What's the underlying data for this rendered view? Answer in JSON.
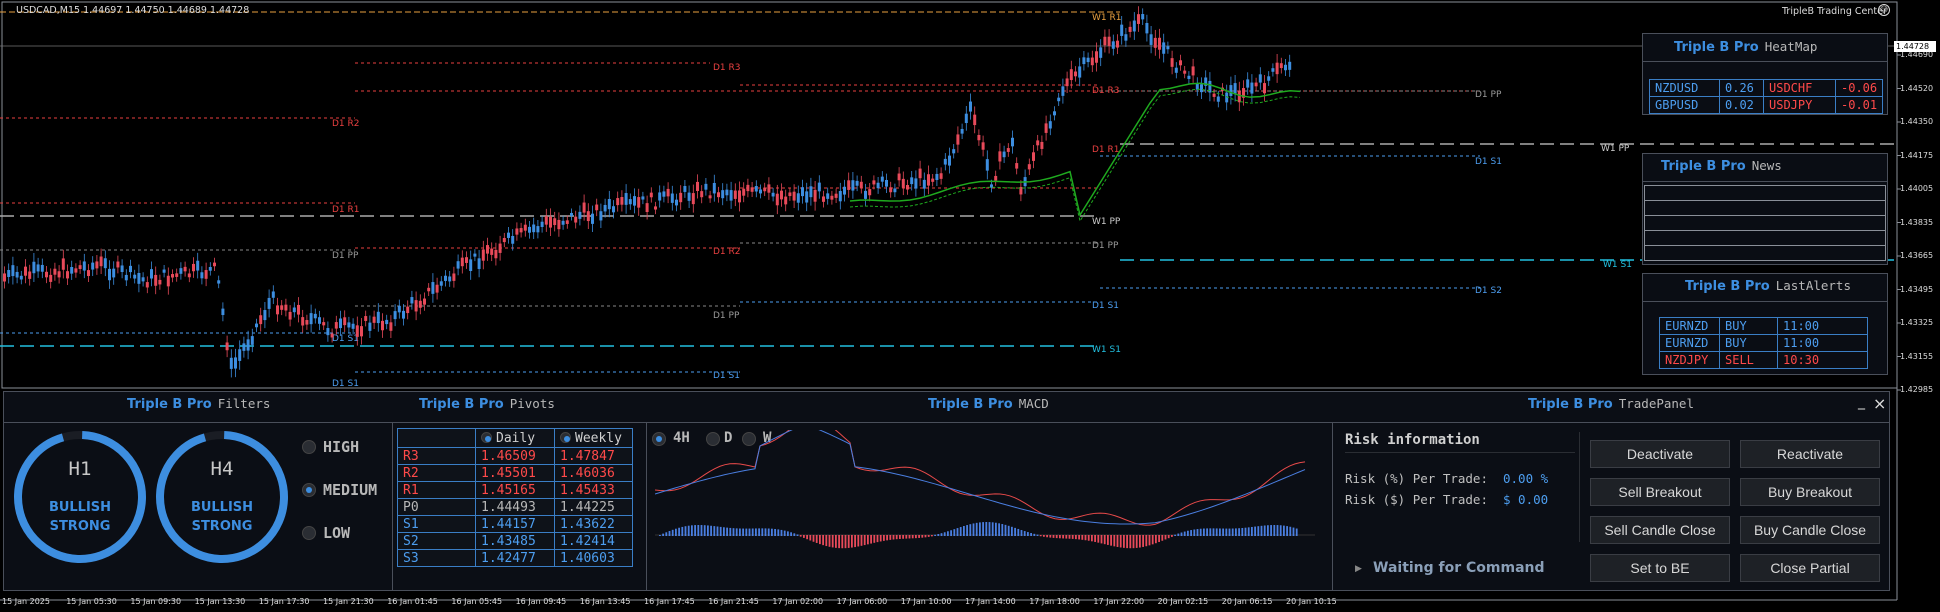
{
  "header": {
    "symbol_info": "USDCAD,M15  1.44697 1.44750 1.44689 1.44728",
    "brand": "TripleB Trading Center",
    "smile_icon": "smile-icon"
  },
  "price_axis": {
    "current": "1.44728",
    "ticks": [
      "1.44690",
      "1.44520",
      "1.44350",
      "1.44175",
      "1.44005",
      "1.43835",
      "1.43665",
      "1.43495",
      "1.43325",
      "1.43155",
      "1.42985"
    ]
  },
  "time_axis": [
    "15 Jan 2025",
    "15 Jan 05:30",
    "15 Jan 09:30",
    "15 Jan 13:30",
    "15 Jan 17:30",
    "15 Jan 21:30",
    "16 Jan 01:45",
    "16 Jan 05:45",
    "16 Jan 09:45",
    "16 Jan 13:45",
    "16 Jan 17:45",
    "16 Jan 21:45",
    "17 Jan 02:00",
    "17 Jan 06:00",
    "17 Jan 10:00",
    "17 Jan 14:00",
    "17 Jan 18:00",
    "17 Jan 22:00",
    "20 Jan 02:15",
    "20 Jan 06:15",
    "20 Jan 10:15"
  ],
  "pivot_labels": [
    "W1 R1",
    "D1 R3",
    "D1 R2",
    "D1 R3",
    "D1 R1",
    "D1 R2",
    "D1 R1",
    "D1 PP",
    "D1 PP",
    "W1 PP",
    "D1 PP",
    "D1 PP",
    "D1 S1",
    "D1 S1",
    "D1 S1",
    "W1 S1",
    "W1 S1",
    "D1 S2",
    "D1 S1",
    "D1 S1",
    "W1 PP"
  ],
  "heatmap": {
    "title_brand": "Triple B Pro",
    "title": "HeatMap",
    "rows": [
      {
        "pair1": "NZDUSD",
        "val1": "0.26",
        "pair2": "USDCHF",
        "val2": "-0.06"
      },
      {
        "pair1": "GBPUSD",
        "val1": "0.02",
        "pair2": "USDJPY",
        "val2": "-0.01"
      }
    ],
    "pos_color": "#4d9ef0",
    "neg_color": "#ff4a4a"
  },
  "news": {
    "title_brand": "Triple B Pro",
    "title": "News"
  },
  "alerts": {
    "title_brand": "Triple B Pro",
    "title": "LastAlerts",
    "rows": [
      {
        "pair": "EURNZD",
        "side": "BUY",
        "time": "11:00"
      },
      {
        "pair": "EURNZD",
        "side": "BUY",
        "time": "11:00"
      },
      {
        "pair": "NZDJPY",
        "side": "SELL",
        "time": "10:30"
      }
    ]
  },
  "filters": {
    "title_brand": "Triple B Pro",
    "title": "Filters",
    "gauges": [
      {
        "tf": "H1",
        "line1": "BULLISH",
        "line2": "STRONG"
      },
      {
        "tf": "H4",
        "line1": "BULLISH",
        "line2": "STRONG"
      }
    ],
    "levels": [
      {
        "label": "HIGH",
        "on": false
      },
      {
        "label": "MEDIUM",
        "on": true
      },
      {
        "label": "LOW",
        "on": false
      }
    ]
  },
  "pivots": {
    "title_brand": "Triple B Pro",
    "title": "Pivots",
    "col_daily": "Daily",
    "col_weekly": "Weekly",
    "rows": [
      {
        "name": "R3",
        "daily": "1.46509",
        "weekly": "1.47847"
      },
      {
        "name": "R2",
        "daily": "1.45501",
        "weekly": "1.46036"
      },
      {
        "name": "R1",
        "daily": "1.45165",
        "weekly": "1.45433"
      },
      {
        "name": "P0",
        "daily": "1.44493",
        "weekly": "1.44225"
      },
      {
        "name": "S1",
        "daily": "1.44157",
        "weekly": "1.43622"
      },
      {
        "name": "S2",
        "daily": "1.43485",
        "weekly": "1.42414"
      },
      {
        "name": "S3",
        "daily": "1.42477",
        "weekly": "1.40603"
      }
    ]
  },
  "macd": {
    "title_brand": "Triple B Pro",
    "title": "MACD",
    "timeframes": [
      {
        "label": "4H",
        "on": true
      },
      {
        "label": "D",
        "on": false
      },
      {
        "label": "W",
        "on": false
      }
    ]
  },
  "trade": {
    "title_brand": "Triple B Pro",
    "title": "TradePanel",
    "risk_title": "Risk information",
    "risk_pct_label": "Risk (%) Per Trade:",
    "risk_pct": "0.00 %",
    "risk_usd_label": "Risk ($) Per Trade:",
    "risk_usd": "$ 0.00",
    "status": "Waiting for Command",
    "buttons": [
      "Deactivate",
      "Reactivate",
      "Sell Breakout",
      "Buy Breakout",
      "Sell Candle Close",
      "Buy Candle Close",
      "Set to BE",
      "Close Partial"
    ],
    "minimize": "_",
    "close": "×"
  }
}
